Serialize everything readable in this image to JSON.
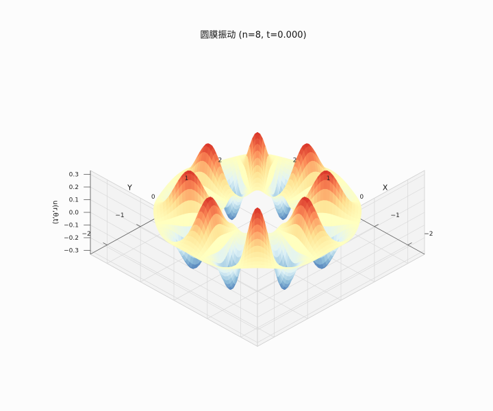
{
  "chart_data": {
    "type": "surface",
    "title": "圆膜振动 (n=8, t=0.000)",
    "xlabel": "X",
    "ylabel": "Y",
    "zlabel": "u(r,θ,t)",
    "x_ticks": [
      "−2",
      "−1",
      "0",
      "1",
      "2"
    ],
    "y_ticks": [
      "−2",
      "−1",
      "0",
      "1",
      "2"
    ],
    "z_ticks": [
      "−0.3",
      "−0.2",
      "−0.1",
      "0.0",
      "0.1",
      "0.2",
      "0.3"
    ],
    "xlim": [
      -2.5,
      2.5
    ],
    "ylim": [
      -2.5,
      2.5
    ],
    "zlim": [
      -0.33,
      0.33
    ],
    "n": 8,
    "t": 0.0,
    "amplitude": 0.33,
    "ring_radius": 1.45,
    "ring_width": 0.42,
    "inner_radius": 0.75,
    "outer_radius": 2.2,
    "colormap": "RdYlBu_r",
    "colors": [
      "#4575b4",
      "#91bfdb",
      "#e0f3f8",
      "#ffffbf",
      "#fee090",
      "#fc8d59",
      "#d73027"
    ],
    "pane_color": "#f7f7f7",
    "grid": true
  }
}
